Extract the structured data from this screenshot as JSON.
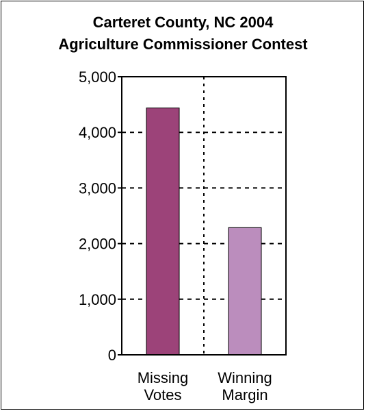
{
  "chart_data": {
    "type": "bar",
    "title_line1": "Carteret County, NC 2004",
    "title_line2": "Agriculture Commissioner Contest",
    "categories": [
      "Missing Votes",
      "Winning Margin"
    ],
    "category_lines": [
      [
        "Missing",
        "Votes"
      ],
      [
        "Winning",
        "Margin"
      ]
    ],
    "values": [
      4438,
      2287
    ],
    "bar_colors": [
      "#9c4379",
      "#bb8dbd"
    ],
    "ylim": [
      0,
      5000
    ],
    "yticks": [
      0,
      1000,
      2000,
      3000,
      4000,
      5000
    ],
    "ytick_labels": [
      "0",
      "1,000",
      "2,000",
      "3,000",
      "4,000",
      "5,000"
    ],
    "grid": "dotted",
    "xlabel": "",
    "ylabel": ""
  }
}
